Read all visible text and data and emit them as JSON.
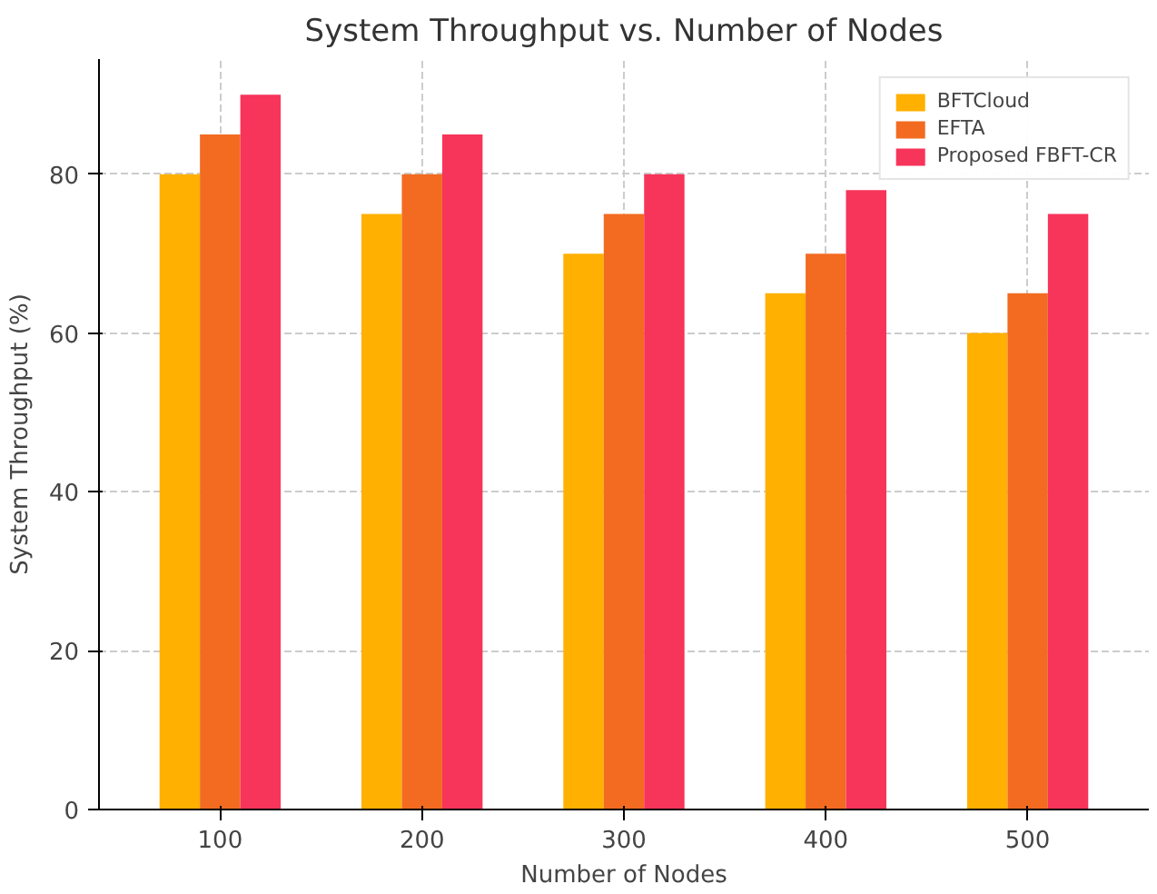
{
  "chart_data": {
    "type": "bar",
    "title": "System Throughput vs. Number of Nodes",
    "xlabel": "Number of Nodes",
    "ylabel": "System Throughput (%)",
    "categories": [
      "100",
      "200",
      "300",
      "400",
      "500"
    ],
    "series": [
      {
        "name": "BFTCloud",
        "color": "#ffb000",
        "values": [
          80,
          75,
          70,
          65,
          60
        ]
      },
      {
        "name": "EFTA",
        "color": "#f26b21",
        "values": [
          85,
          80,
          75,
          70,
          65
        ]
      },
      {
        "name": "Proposed FBFT-CR",
        "color": "#f7345a",
        "values": [
          90,
          85,
          80,
          78,
          75
        ]
      }
    ],
    "ylim": [
      0,
      94.5
    ],
    "yticks": [
      0,
      20,
      40,
      60,
      80
    ],
    "grid": true,
    "legend": "top right"
  }
}
